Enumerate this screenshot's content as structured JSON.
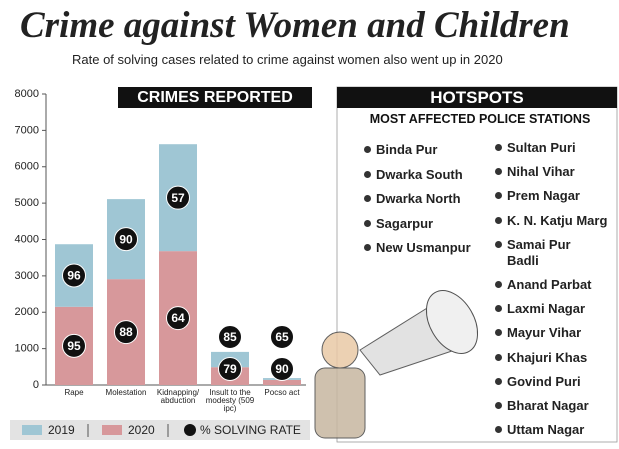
{
  "title": "Crime against Women and Children",
  "subtitle": "Rate of solving cases related to crime against women also went up in 2020",
  "chart_data": {
    "type": "bar",
    "stacked": true,
    "title": "CRIMES REPORTED",
    "categories": [
      "Rape",
      "Molestation",
      "Kidnapping/ abduction",
      "Insult to the modesty (509 ipc)",
      "Pocso act"
    ],
    "series": [
      {
        "name": "2020",
        "color": "#d7989b",
        "values": [
          2150,
          2910,
          3680,
          490,
          140
        ],
        "solving_rates": [
          95,
          88,
          64,
          79,
          90
        ]
      },
      {
        "name": "2019",
        "color": "#9fc6d4",
        "values": [
          1720,
          2200,
          2940,
          420,
          50
        ],
        "solving_rates": [
          96,
          90,
          57,
          85,
          65
        ]
      }
    ],
    "solving_rate_label": "% SOLVING RATE",
    "ylim": [
      0,
      8000
    ],
    "yticks": [
      0,
      1000,
      2000,
      3000,
      4000,
      5000,
      6000,
      7000,
      8000
    ],
    "grid": false
  },
  "hotspots": {
    "title": "HOTSPOTS",
    "subtitle": "MOST AFFECTED POLICE STATIONS",
    "column_1": [
      "Binda Pur",
      "Dwarka South",
      "Dwarka North",
      "Sagarpur",
      "New Usmanpur"
    ],
    "column_2": [
      "Sultan Puri",
      "Nihal Vihar",
      "Prem Nagar",
      "K. N. Katju Marg",
      "Samai Pur Badli",
      "Anand Parbat",
      "Laxmi Nagar",
      "Mayur Vihar",
      "Khajuri Khas",
      "Govind Puri",
      "Bharat Nagar",
      "Uttam Nagar"
    ]
  }
}
